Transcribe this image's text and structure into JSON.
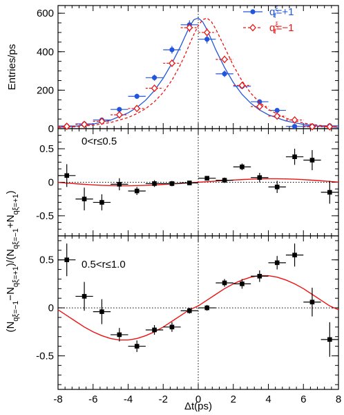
{
  "chart_data": [
    {
      "type": "scatter",
      "panel": "top",
      "ylabel": "Entries/ps",
      "xlim": [
        -8,
        8
      ],
      "ylim": [
        0,
        640
      ],
      "yticks": [
        0,
        200,
        400,
        600
      ],
      "legend_position": "top-right",
      "series": [
        {
          "name": "qξf=+1",
          "legend": {
            "base": "q",
            "sup": "ξ",
            "sub": "f",
            "rest": "=+1"
          },
          "color": "#2255dd",
          "marker": "filled-circle",
          "line": "solid",
          "x": [
            -7.5,
            -6.5,
            -5.5,
            -4.5,
            -3.5,
            -2.5,
            -1.5,
            -0.5,
            0.5,
            1.5,
            2.5,
            3.5,
            4.5,
            5.5,
            6.5,
            7.5
          ],
          "y": [
            14,
            25,
            45,
            100,
            168,
            265,
            410,
            540,
            465,
            285,
            220,
            140,
            95,
            12,
            14,
            15
          ],
          "yerr": [
            4,
            5,
            7,
            10,
            13,
            16,
            20,
            23,
            22,
            17,
            15,
            12,
            10,
            4,
            4,
            4
          ],
          "fit_x": [
            -8,
            -7,
            -6,
            -5,
            -4,
            -3.5,
            -3,
            -2.5,
            -2,
            -1.5,
            -1,
            -0.75,
            -0.5,
            -0.25,
            0,
            0.25,
            0.5,
            0.75,
            1,
            1.5,
            2,
            2.5,
            3,
            3.5,
            4,
            5,
            6,
            7,
            8
          ],
          "fit_y": [
            7,
            13,
            24,
            44,
            82,
            110,
            148,
            198,
            262,
            340,
            430,
            480,
            530,
            566,
            575,
            556,
            514,
            463,
            410,
            318,
            240,
            178,
            132,
            97,
            72,
            40,
            22,
            12,
            7
          ]
        },
        {
          "name": "qξf=−1",
          "legend": {
            "base": "q",
            "sup": "ξ",
            "sub": "f",
            "rest": "=−1"
          },
          "color": "#ee1111",
          "marker": "open-diamond",
          "line": "dashed",
          "x": [
            -7.5,
            -6.5,
            -5.5,
            -4.5,
            -3.5,
            -2.5,
            -1.5,
            -0.5,
            0.5,
            1.5,
            2.5,
            3.5,
            4.5,
            5.5,
            6.5,
            7.5
          ],
          "y": [
            12,
            22,
            38,
            72,
            105,
            210,
            340,
            525,
            500,
            360,
            225,
            115,
            65,
            45,
            10,
            10
          ],
          "yerr": [
            4,
            5,
            6,
            9,
            10,
            15,
            19,
            23,
            22,
            19,
            15,
            11,
            8,
            7,
            3,
            3
          ],
          "fit_x": [
            -8,
            -7,
            -6,
            -5,
            -4,
            -3.5,
            -3,
            -2.5,
            -2,
            -1.5,
            -1,
            -0.75,
            -0.5,
            -0.25,
            0,
            0.25,
            0.5,
            0.75,
            1,
            1.5,
            2,
            2.5,
            3,
            3.5,
            4,
            5,
            6,
            7,
            8
          ],
          "fit_y": [
            6,
            10,
            18,
            32,
            58,
            78,
            104,
            140,
            188,
            252,
            335,
            385,
            438,
            490,
            535,
            566,
            575,
            556,
            518,
            424,
            328,
            248,
            184,
            136,
            100,
            54,
            29,
            16,
            8
          ]
        }
      ]
    },
    {
      "type": "scatter",
      "panel": "middle",
      "label": "0<r≤0.5",
      "xlim": [
        -8,
        8
      ],
      "ylim": [
        -0.8,
        0.8
      ],
      "yticks": [
        -0.5,
        0,
        0.5
      ],
      "ytick_labels": [
        "-0.5",
        "0",
        "0.5"
      ],
      "x": [
        -7.5,
        -6.5,
        -5.5,
        -4.5,
        -3.5,
        -2.5,
        -1.5,
        -0.5,
        0.5,
        1.5,
        2.5,
        3.5,
        4.5,
        5.5,
        6.5,
        7.5
      ],
      "y": [
        0.1,
        -0.25,
        -0.3,
        -0.03,
        -0.13,
        -0.02,
        -0.02,
        -0.01,
        0.06,
        0.03,
        0.23,
        0.07,
        -0.07,
        0.38,
        0.33,
        -0.15
      ],
      "yerr": [
        0.17,
        0.17,
        0.12,
        0.09,
        0.06,
        0.05,
        0.04,
        0.03,
        0.03,
        0.04,
        0.05,
        0.07,
        0.09,
        0.12,
        0.15,
        0.17
      ],
      "fit_color": "#ee1111",
      "fit_x": [
        -8,
        -7.5,
        -7,
        -6.5,
        -6,
        -5.5,
        -5,
        -4.5,
        -4,
        -3.5,
        -3,
        -2.5,
        -2,
        -1.5,
        -1,
        -0.5,
        0,
        0.5,
        1,
        1.5,
        2,
        2.5,
        3,
        3.5,
        4,
        4.5,
        5,
        5.5,
        6,
        6.5,
        7,
        7.5,
        8
      ],
      "fit_y": [
        -0.002,
        -0.012,
        -0.022,
        -0.031,
        -0.039,
        -0.046,
        -0.05,
        -0.052,
        -0.052,
        -0.05,
        -0.046,
        -0.04,
        -0.033,
        -0.025,
        -0.017,
        -0.008,
        0,
        0.008,
        0.017,
        0.025,
        0.033,
        0.04,
        0.046,
        0.05,
        0.052,
        0.052,
        0.05,
        0.046,
        0.039,
        0.031,
        0.022,
        0.012,
        0.002
      ]
    },
    {
      "type": "scatter",
      "panel": "bottom",
      "label": "0.5<r≤1.0",
      "xlim": [
        -8,
        8
      ],
      "ylim": [
        -0.85,
        0.75
      ],
      "yticks": [
        -0.5,
        0,
        0.5
      ],
      "ytick_labels": [
        "-0.5",
        "0",
        "0.5"
      ],
      "xticks": [
        -8,
        -6,
        -4,
        -2,
        0,
        2,
        4,
        6,
        8
      ],
      "xlabel": "Δt(ps)",
      "x": [
        -7.5,
        -6.5,
        -5.5,
        -4.5,
        -3.5,
        -2.5,
        -1.5,
        -0.5,
        0.5,
        1.5,
        2.5,
        3.5,
        4.5,
        5.5,
        6.5,
        7.5
      ],
      "y": [
        0.5,
        0.12,
        -0.04,
        -0.28,
        -0.4,
        -0.23,
        -0.2,
        -0.03,
        0.0,
        0.26,
        0.25,
        0.33,
        0.47,
        0.55,
        0.06,
        -0.33
      ],
      "yerr": [
        0.17,
        0.15,
        0.13,
        0.07,
        0.06,
        0.05,
        0.05,
        0.03,
        0.03,
        0.04,
        0.05,
        0.06,
        0.07,
        0.12,
        0.15,
        0.18
      ],
      "fit_color": "#ee1111",
      "fit_x": [
        -8,
        -7.5,
        -7,
        -6.5,
        -6,
        -5.5,
        -5,
        -4.5,
        -4,
        -3.5,
        -3,
        -2.5,
        -2,
        -1.5,
        -1,
        -0.5,
        0,
        0.5,
        1,
        1.5,
        2,
        2.5,
        3,
        3.5,
        4,
        4.5,
        5,
        5.5,
        6,
        6.5,
        7,
        7.5,
        8
      ],
      "fit_y": [
        -0.02,
        -0.08,
        -0.14,
        -0.2,
        -0.25,
        -0.29,
        -0.32,
        -0.335,
        -0.335,
        -0.32,
        -0.29,
        -0.25,
        -0.2,
        -0.14,
        -0.08,
        -0.02,
        0.02,
        0.08,
        0.14,
        0.2,
        0.25,
        0.29,
        0.32,
        0.335,
        0.335,
        0.32,
        0.29,
        0.25,
        0.2,
        0.14,
        0.08,
        0.02,
        -0.02
      ]
    }
  ],
  "shared_ylabel": {
    "prefix": "(N",
    "num_a_sub": "qξ=−1",
    "minus": "−N",
    "num_b_sub": "qξ=+1",
    "mid": ")/(N",
    "den_a_sub": "qξ=−1",
    "plus": "+N",
    "den_b_sub": "qξ=+1",
    "suffix": ")"
  }
}
